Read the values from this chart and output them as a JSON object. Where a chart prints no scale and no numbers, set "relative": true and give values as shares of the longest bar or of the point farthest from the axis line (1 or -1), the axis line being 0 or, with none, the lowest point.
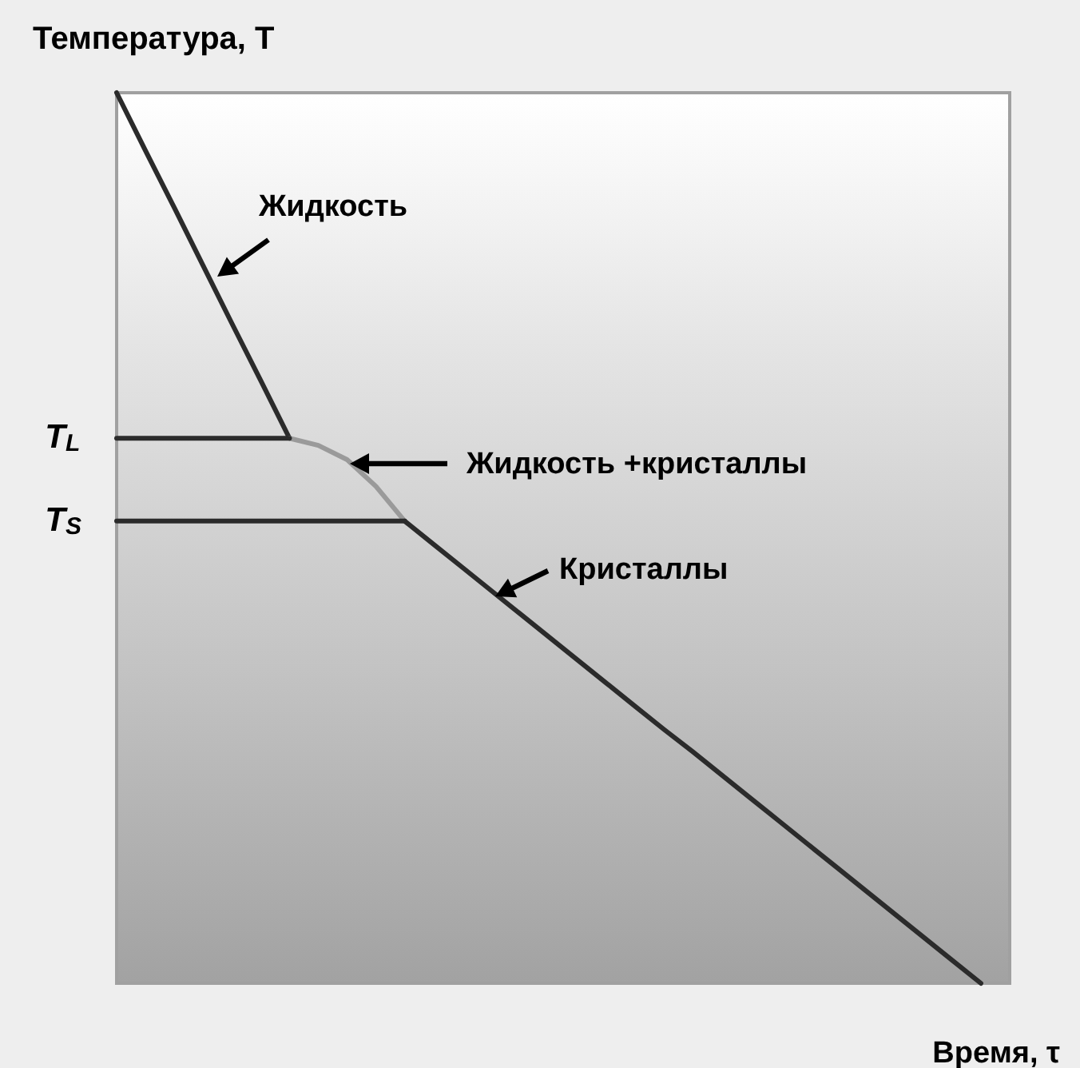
{
  "chart_data": {
    "type": "line",
    "relative": true,
    "xlabel": "Время, τ",
    "ylabel": "Температура, T",
    "legend": false,
    "marker": "none",
    "categories": [
      null,
      null,
      null,
      null,
      null,
      null,
      null,
      null,
      null,
      null,
      null,
      null,
      null,
      null,
      null,
      null,
      null,
      null,
      null,
      null,
      null,
      null,
      null,
      null,
      null,
      null,
      null,
      null,
      null,
      null,
      null,
      null
    ],
    "series": [
      {
        "color": "#2b2b2b",
        "values": [
          1,
          0.935,
          0.871,
          0.806,
          0.741,
          0.677,
          0.612,
          null,
          null,
          null,
          null,
          null,
          null,
          null,
          null,
          null,
          null,
          null,
          null,
          null,
          null,
          null,
          null,
          null,
          null,
          null,
          null,
          null,
          null,
          null,
          null,
          null
        ]
      },
      {
        "color": "#9a9a9a",
        "values": [
          null,
          null,
          null,
          null,
          null,
          null,
          0.612,
          0.604,
          0.588,
          0.558,
          0.519,
          null,
          null,
          null,
          null,
          null,
          null,
          null,
          null,
          null,
          null,
          null,
          null,
          null,
          null,
          null,
          null,
          null,
          null,
          null,
          null,
          null
        ]
      },
      {
        "color": "#2b2b2b",
        "values": [
          null,
          null,
          null,
          null,
          null,
          null,
          null,
          null,
          null,
          null,
          0.519,
          0.493,
          0.467,
          0.441,
          0.415,
          0.389,
          0.363,
          0.337,
          0.311,
          0.285,
          0.26,
          0.234,
          0.208,
          0.182,
          0.156,
          0.13,
          0.104,
          0.078,
          0.052,
          0.026,
          0,
          null
        ]
      },
      {
        "color": "#2b2b2b",
        "values": [
          0.612,
          0.612,
          0.612,
          0.612,
          0.612,
          0.612,
          0.612,
          null,
          null,
          null,
          null,
          null,
          null,
          null,
          null,
          null,
          null,
          null,
          null,
          null,
          null,
          null,
          null,
          null,
          null,
          null,
          null,
          null,
          null,
          null,
          null,
          null
        ]
      },
      {
        "color": "#2b2b2b",
        "values": [
          0.519,
          0.519,
          0.519,
          0.519,
          0.519,
          0.519,
          0.519,
          0.519,
          0.519,
          0.519,
          0.519,
          null,
          null,
          null,
          null,
          null,
          null,
          null,
          null,
          null,
          null,
          null,
          null,
          null,
          null,
          null,
          null,
          null,
          null,
          null,
          null,
          null
        ]
      }
    ],
    "annotations": [
      "T$_{L}$",
      "T$_{S}$",
      "Жидкость",
      "Жидкость +кристаллы",
      "Кристаллы"
    ]
  }
}
